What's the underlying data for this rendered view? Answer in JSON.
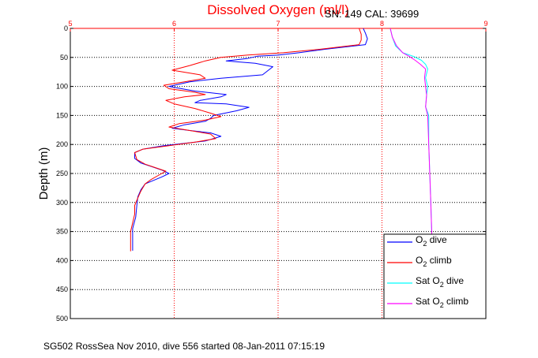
{
  "chart_data": {
    "type": "line",
    "title": "Dissolved Oxygen (ml/l)",
    "subtitle": "SN: 149  CAL: 39699",
    "xlabel": "",
    "ylabel": "Depth (m)",
    "footer": "SG502 RossSea Nov 2010, dive 556 started 08-Jan-2011 07:15:19",
    "xlim": [
      5,
      9
    ],
    "ylim": [
      500,
      0
    ],
    "y_reversed": true,
    "x_axis_position": "top",
    "xticks": [
      5,
      6,
      7,
      8,
      9
    ],
    "yticks": [
      0,
      50,
      100,
      150,
      200,
      250,
      300,
      350,
      400,
      450,
      500
    ],
    "grid": true,
    "legend": {
      "position": "bottom-right"
    },
    "series": [
      {
        "key": "o2_dive",
        "legend_main": "O",
        "legend_sub": "2",
        "legend_rest": " dive",
        "color": "#0000ff",
        "style": "line",
        "points": [
          [
            7.82,
            0
          ],
          [
            7.84,
            8
          ],
          [
            7.86,
            18
          ],
          [
            7.84,
            28
          ],
          [
            7.45,
            36
          ],
          [
            7.2,
            42
          ],
          [
            7.0,
            46
          ],
          [
            6.8,
            48
          ],
          [
            6.7,
            52
          ],
          [
            6.5,
            56
          ],
          [
            6.78,
            60
          ],
          [
            6.95,
            66
          ],
          [
            6.85,
            80
          ],
          [
            6.45,
            86
          ],
          [
            6.15,
            92
          ],
          [
            5.95,
            100
          ],
          [
            6.2,
            108
          ],
          [
            6.5,
            114
          ],
          [
            6.45,
            118
          ],
          [
            6.25,
            124
          ],
          [
            6.2,
            128
          ],
          [
            6.5,
            130
          ],
          [
            6.72,
            136
          ],
          [
            6.6,
            142
          ],
          [
            6.38,
            150
          ],
          [
            6.35,
            155
          ],
          [
            6.3,
            160
          ],
          [
            6.1,
            166
          ],
          [
            5.98,
            172
          ],
          [
            6.15,
            176
          ],
          [
            6.35,
            180
          ],
          [
            6.45,
            186
          ],
          [
            6.3,
            194
          ],
          [
            6.1,
            198
          ],
          [
            5.9,
            202
          ],
          [
            5.7,
            208
          ],
          [
            5.62,
            214
          ],
          [
            5.62,
            224
          ],
          [
            5.68,
            232
          ],
          [
            5.78,
            238
          ],
          [
            5.88,
            244
          ],
          [
            5.95,
            250
          ],
          [
            5.88,
            256
          ],
          [
            5.8,
            262
          ],
          [
            5.72,
            268
          ],
          [
            5.68,
            278
          ],
          [
            5.65,
            290
          ],
          [
            5.64,
            305
          ],
          [
            5.63,
            325
          ],
          [
            5.6,
            345
          ],
          [
            5.6,
            362
          ],
          [
            5.6,
            375
          ],
          [
            5.6,
            383
          ]
        ]
      },
      {
        "key": "o2_climb",
        "legend_main": "O",
        "legend_sub": "2",
        "legend_rest": " climb",
        "color": "#ff0000",
        "style": "line",
        "points": [
          [
            7.78,
            0
          ],
          [
            7.8,
            10
          ],
          [
            7.8,
            20
          ],
          [
            7.78,
            28
          ],
          [
            7.4,
            36
          ],
          [
            7.05,
            42
          ],
          [
            6.7,
            46
          ],
          [
            6.45,
            50
          ],
          [
            6.3,
            56
          ],
          [
            6.15,
            64
          ],
          [
            5.98,
            72
          ],
          [
            6.25,
            80
          ],
          [
            6.3,
            86
          ],
          [
            6.1,
            92
          ],
          [
            5.9,
            98
          ],
          [
            5.95,
            104
          ],
          [
            6.2,
            110
          ],
          [
            6.3,
            114
          ],
          [
            6.1,
            118
          ],
          [
            5.92,
            124
          ],
          [
            6.0,
            130
          ],
          [
            6.2,
            138
          ],
          [
            6.35,
            146
          ],
          [
            6.45,
            152
          ],
          [
            6.3,
            158
          ],
          [
            6.05,
            164
          ],
          [
            5.95,
            170
          ],
          [
            6.15,
            176
          ],
          [
            6.35,
            182
          ],
          [
            6.4,
            190
          ],
          [
            6.2,
            196
          ],
          [
            5.95,
            202
          ],
          [
            5.7,
            208
          ],
          [
            5.62,
            214
          ],
          [
            5.64,
            226
          ],
          [
            5.72,
            234
          ],
          [
            5.82,
            240
          ],
          [
            5.92,
            246
          ],
          [
            5.86,
            252
          ],
          [
            5.78,
            260
          ],
          [
            5.72,
            268
          ],
          [
            5.68,
            280
          ],
          [
            5.65,
            292
          ],
          [
            5.62,
            305
          ],
          [
            5.62,
            320
          ],
          [
            5.6,
            335
          ],
          [
            5.58,
            350
          ],
          [
            5.58,
            362
          ],
          [
            5.58,
            372
          ],
          [
            5.58,
            384
          ]
        ]
      },
      {
        "key": "sat_dive",
        "legend_main": "Sat O",
        "legend_sub": "2",
        "legend_rest": " dive",
        "color": "#00ffff",
        "style": "line",
        "points": [
          [
            8.08,
            0
          ],
          [
            8.1,
            15
          ],
          [
            8.13,
            30
          ],
          [
            8.2,
            42
          ],
          [
            8.3,
            48
          ],
          [
            8.38,
            55
          ],
          [
            8.42,
            62
          ],
          [
            8.44,
            70
          ],
          [
            8.42,
            85
          ],
          [
            8.44,
            100
          ],
          [
            8.43,
            115
          ],
          [
            8.42,
            135
          ],
          [
            8.45,
            150
          ],
          [
            8.45,
            200
          ],
          [
            8.46,
            250
          ],
          [
            8.47,
            300
          ],
          [
            8.48,
            357
          ]
        ]
      },
      {
        "key": "sat_climb",
        "legend_main": "Sat O",
        "legend_sub": "2",
        "legend_rest": " climb",
        "color": "#ff00ff",
        "style": "line",
        "points": [
          [
            8.08,
            0
          ],
          [
            8.1,
            15
          ],
          [
            8.14,
            30
          ],
          [
            8.2,
            42
          ],
          [
            8.26,
            48
          ],
          [
            8.32,
            55
          ],
          [
            8.37,
            62
          ],
          [
            8.42,
            70
          ],
          [
            8.41,
            85
          ],
          [
            8.42,
            100
          ],
          [
            8.43,
            115
          ],
          [
            8.42,
            135
          ],
          [
            8.44,
            150
          ],
          [
            8.45,
            200
          ],
          [
            8.46,
            250
          ],
          [
            8.47,
            300
          ],
          [
            8.48,
            357
          ]
        ]
      }
    ]
  }
}
